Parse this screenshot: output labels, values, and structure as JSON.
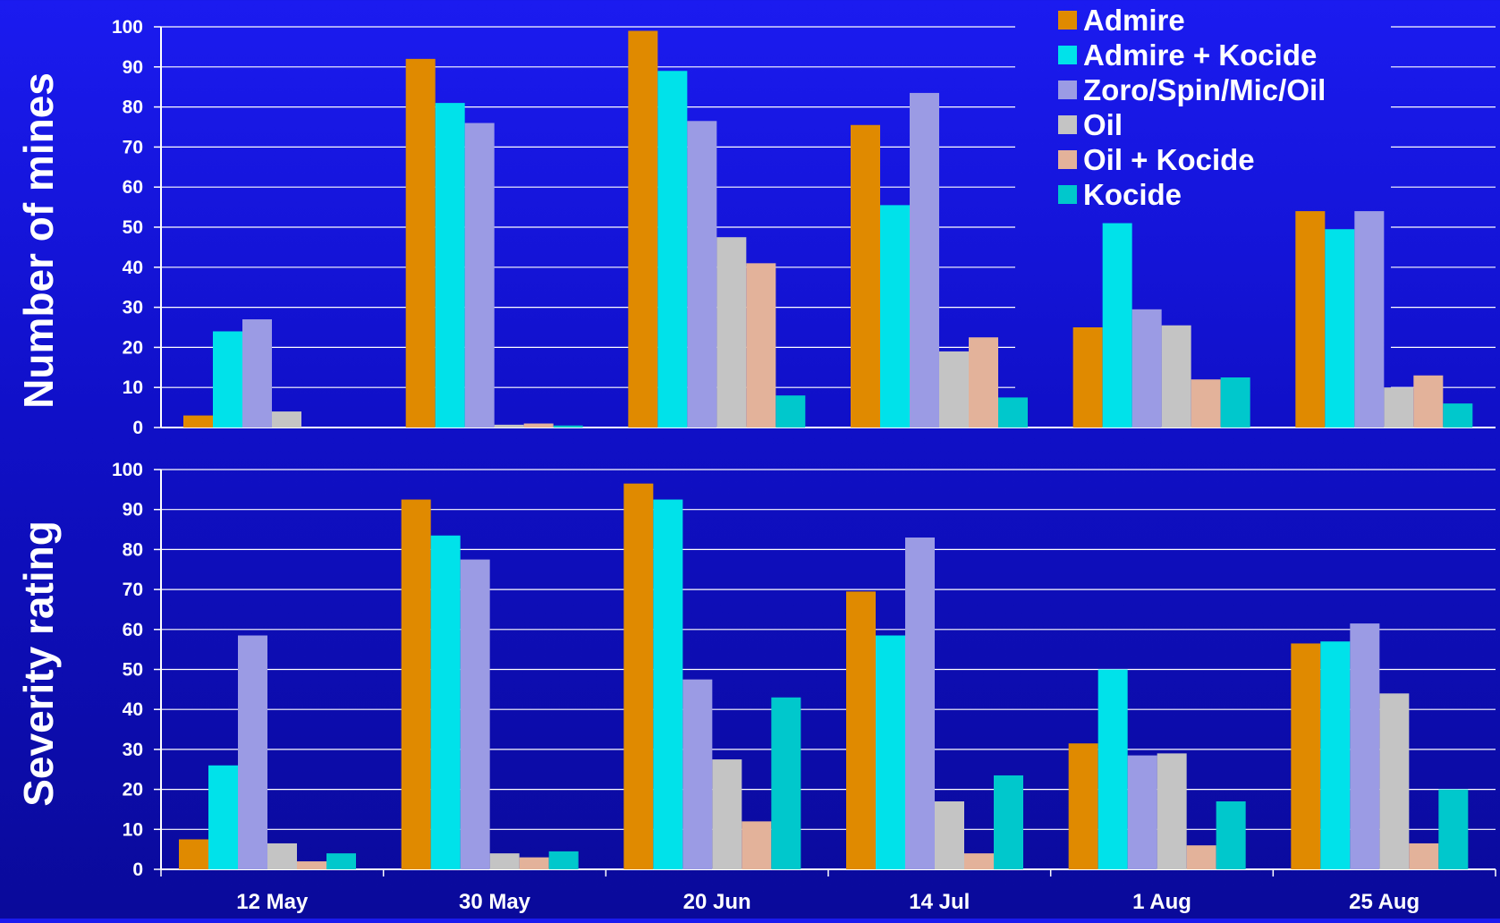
{
  "chart_data": [
    {
      "type": "bar",
      "ylabel": "Number of mines",
      "ylim": [
        0,
        100
      ],
      "yticks": [
        0,
        10,
        20,
        30,
        40,
        50,
        60,
        70,
        80,
        90,
        100
      ],
      "grid": true,
      "categories": [
        "12 May",
        "30 May",
        "20 Jun",
        "14 Jul",
        "1 Aug",
        "25 Aug"
      ],
      "series": [
        {
          "name": "Admire",
          "values": [
            3,
            92,
            99,
            75.5,
            25,
            54
          ]
        },
        {
          "name": "Admire + Kocide",
          "values": [
            24,
            81,
            89,
            55.5,
            51,
            49.5
          ]
        },
        {
          "name": "Zoro/Spin/Mic/Oil",
          "values": [
            27,
            76,
            76.5,
            83.5,
            29.5,
            54
          ]
        },
        {
          "name": "Oil",
          "values": [
            4,
            0.7,
            47.5,
            19,
            25.5,
            10
          ]
        },
        {
          "name": "Oil + Kocide",
          "values": [
            0,
            1,
            41,
            22.5,
            12,
            13
          ]
        },
        {
          "name": "Kocide",
          "values": [
            0,
            0.5,
            8,
            7.5,
            12.5,
            6
          ]
        }
      ]
    },
    {
      "type": "bar",
      "ylabel": "Severity rating",
      "ylim": [
        0,
        100
      ],
      "yticks": [
        0,
        10,
        20,
        30,
        40,
        50,
        60,
        70,
        80,
        90,
        100
      ],
      "grid": true,
      "categories": [
        "12 May",
        "30 May",
        "20 Jun",
        "14 Jul",
        "1 Aug",
        "25 Aug"
      ],
      "series": [
        {
          "name": "Admire",
          "values": [
            7.5,
            92.5,
            96.5,
            69.5,
            31.5,
            56.5
          ]
        },
        {
          "name": "Admire + Kocide",
          "values": [
            26,
            83.5,
            92.5,
            58.5,
            50,
            57
          ]
        },
        {
          "name": "Zoro/Spin/Mic/Oil",
          "values": [
            58.5,
            77.5,
            47.5,
            83,
            28.5,
            61.5
          ]
        },
        {
          "name": "Oil",
          "values": [
            6.5,
            4,
            27.5,
            17,
            29,
            44
          ]
        },
        {
          "name": "Oil + Kocide",
          "values": [
            2,
            3,
            12,
            4,
            6,
            6.5
          ]
        },
        {
          "name": "Kocide",
          "values": [
            4,
            4.5,
            43,
            23.5,
            17,
            20
          ]
        }
      ]
    }
  ],
  "legend": {
    "position": "top-right",
    "items": [
      {
        "label": "Admire",
        "color": "#e08a00"
      },
      {
        "label": "Admire + Kocide",
        "color": "#00e2ea"
      },
      {
        "label": "Zoro/Spin/Mic/Oil",
        "color": "#9b9be4"
      },
      {
        "label": "Oil",
        "color": "#c4c4c4"
      },
      {
        "label": "Oil + Kocide",
        "color": "#e3b29a"
      },
      {
        "label": "Kocide",
        "color": "#00c8cc"
      }
    ]
  },
  "colors": {
    "background": "#1414d8",
    "gridline": "#ffffff",
    "text": "#ffffff"
  }
}
